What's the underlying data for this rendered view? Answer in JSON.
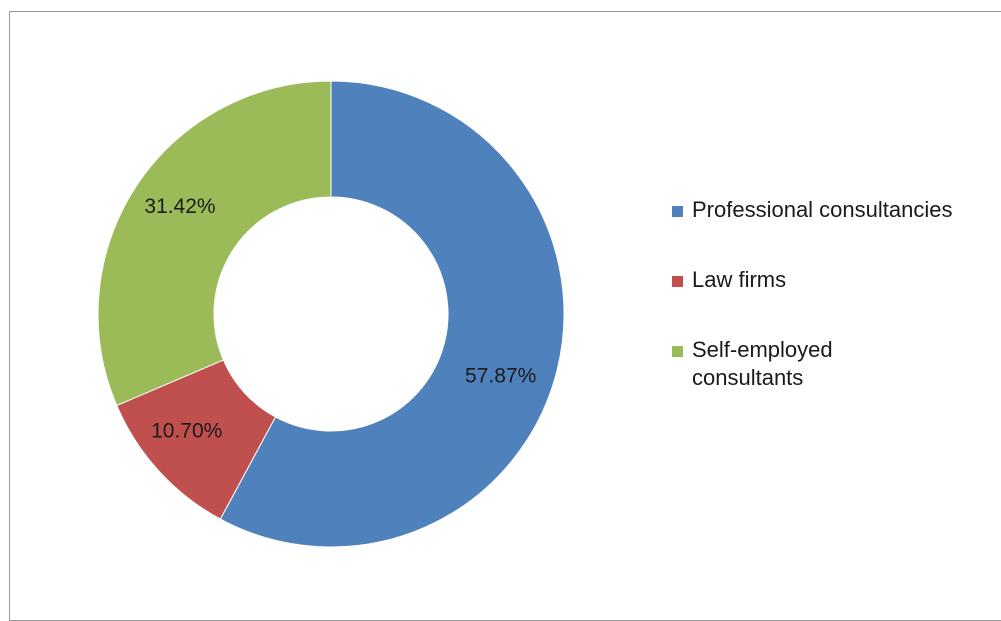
{
  "chart_data": {
    "type": "pie",
    "subtype": "donut",
    "title": "",
    "categories": [
      "Professional consultancies",
      "Law firms",
      "Self-employed consultants"
    ],
    "values": [
      57.87,
      10.7,
      31.42
    ],
    "data_labels": [
      "57.87%",
      "10.70%",
      "31.42%"
    ],
    "colors": [
      "#4f81bd",
      "#c0504d",
      "#9bbb59"
    ],
    "legend": "right"
  },
  "legend": {
    "items": [
      {
        "label": "Professional consultancies",
        "color": "#4f81bd"
      },
      {
        "label": "Law firms",
        "color": "#c0504d"
      },
      {
        "label": "Self-employed consultants",
        "color": "#9bbb59"
      }
    ]
  }
}
